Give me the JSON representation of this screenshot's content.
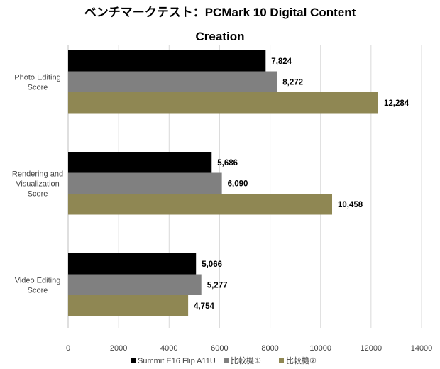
{
  "chart_data": {
    "type": "bar",
    "orientation": "horizontal",
    "title_line1": "ベンチマークテスト：PCMark 10 Digital Content",
    "title_line2": "Creation",
    "categories": [
      [
        "Photo Editing",
        "Score"
      ],
      [
        "Rendering and",
        "Visualization",
        "Score"
      ],
      [
        "Video Editing",
        "Score"
      ]
    ],
    "series": [
      {
        "name": "Summit E16 Flip A11U",
        "color": "#000000",
        "values": [
          7824,
          5686,
          5066
        ],
        "labels": [
          "7,824",
          "5,686",
          "5,066"
        ]
      },
      {
        "name": "比較機①",
        "color": "#808080",
        "values": [
          8272,
          6090,
          5277
        ],
        "labels": [
          "8,272",
          "6,090",
          "5,277"
        ]
      },
      {
        "name": "比較機②",
        "color": "#8f8753",
        "values": [
          12284,
          10458,
          4754
        ],
        "labels": [
          "12,284",
          "10,458",
          "4,754"
        ]
      }
    ],
    "xlim": [
      0,
      14000
    ],
    "xticks": [
      "0",
      "2000",
      "4000",
      "6000",
      "8000",
      "10000",
      "12000",
      "14000"
    ],
    "grid": true,
    "legend_position": "bottom"
  }
}
